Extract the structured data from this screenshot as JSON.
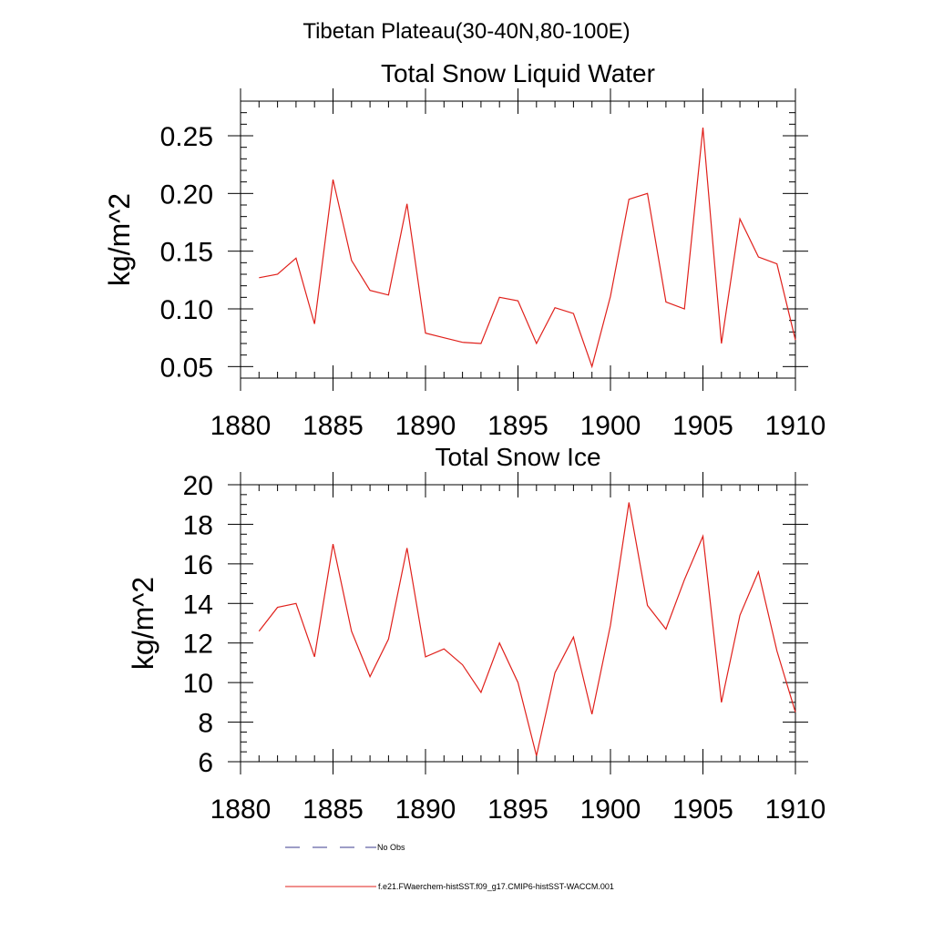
{
  "figure_title": "Tibetan Plateau(30-40N,80-100E)",
  "legend": [
    {
      "label": "No Obs",
      "color": "#3b3b8f",
      "dash": "dashed"
    },
    {
      "label": "f.e21.FWaerchem-histSST.f09_g17.CMIP6-histSST-WACCM.001",
      "color": "#e0201b",
      "dash": "solid"
    }
  ],
  "chart_data": [
    {
      "type": "line",
      "title": "Total Snow Liquid Water",
      "ylabel": "kg/m^2",
      "xlabel": "",
      "xlim": [
        1880,
        1910
      ],
      "ylim": [
        0.04,
        0.28
      ],
      "xticks": [
        1880,
        1885,
        1890,
        1895,
        1900,
        1905,
        1910
      ],
      "yticks": [
        0.05,
        0.1,
        0.15,
        0.2,
        0.25
      ],
      "ytick_labels": [
        "0.05",
        "0.10",
        "0.15",
        "0.20",
        "0.25"
      ],
      "x": [
        1881,
        1882,
        1883,
        1884,
        1885,
        1886,
        1887,
        1888,
        1889,
        1890,
        1891,
        1892,
        1893,
        1894,
        1895,
        1896,
        1897,
        1898,
        1899,
        1900,
        1901,
        1902,
        1903,
        1904,
        1905,
        1906,
        1907,
        1908,
        1909,
        1910
      ],
      "series": [
        {
          "color": "#e0201b",
          "values": [
            0.127,
            0.13,
            0.144,
            0.087,
            0.212,
            0.142,
            0.116,
            0.112,
            0.191,
            0.079,
            0.075,
            0.071,
            0.07,
            0.11,
            0.107,
            0.07,
            0.101,
            0.096,
            0.05,
            0.111,
            0.195,
            0.2,
            0.106,
            0.1,
            0.257,
            0.07,
            0.178,
            0.145,
            0.139,
            0.073
          ]
        }
      ]
    },
    {
      "type": "line",
      "title": "Total Snow Ice",
      "ylabel": "kg/m^2",
      "xlabel": "",
      "xlim": [
        1880,
        1910
      ],
      "ylim": [
        6,
        20
      ],
      "xticks": [
        1880,
        1885,
        1890,
        1895,
        1900,
        1905,
        1910
      ],
      "yticks": [
        6,
        8,
        10,
        12,
        14,
        16,
        18,
        20
      ],
      "ytick_labels": [
        "6",
        "8",
        "10",
        "12",
        "14",
        "16",
        "18",
        "20"
      ],
      "x": [
        1881,
        1882,
        1883,
        1884,
        1885,
        1886,
        1887,
        1888,
        1889,
        1890,
        1891,
        1892,
        1893,
        1894,
        1895,
        1896,
        1897,
        1898,
        1899,
        1900,
        1901,
        1902,
        1903,
        1904,
        1905,
        1906,
        1907,
        1908,
        1909,
        1910
      ],
      "series": [
        {
          "color": "#e0201b",
          "values": [
            12.6,
            13.8,
            14.0,
            11.3,
            17.0,
            12.6,
            10.3,
            12.2,
            16.8,
            11.3,
            11.7,
            10.9,
            9.5,
            12.0,
            10.0,
            6.3,
            10.5,
            12.3,
            8.4,
            12.9,
            19.1,
            13.9,
            12.7,
            15.2,
            17.4,
            9.0,
            13.4,
            15.6,
            11.6,
            8.5
          ]
        }
      ]
    }
  ]
}
